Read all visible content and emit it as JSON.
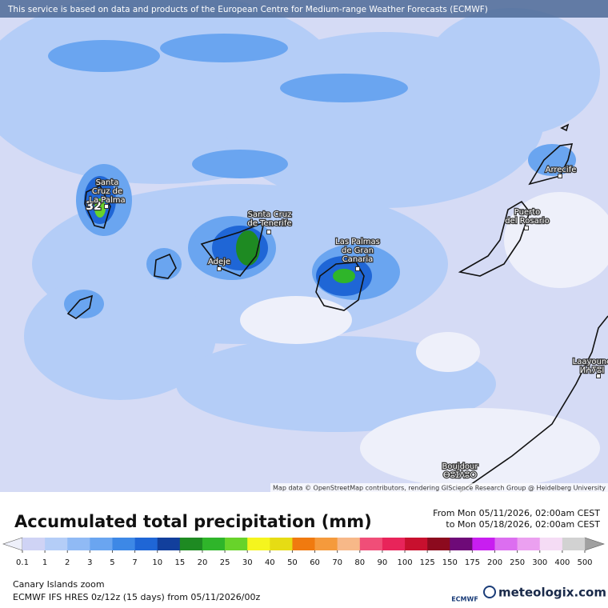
{
  "banner": "This service is based on data and products of the European Centre for Medium-range Weather Forecasts (ECMWF)",
  "map": {
    "max_value": 32,
    "attribution": "Map data © OpenStreetMap contributors, rendering GIScience Research Group @ Heidelberg University",
    "places": [
      {
        "lines": [
          "Santa",
          "Cruz de",
          "La Palma"
        ]
      },
      {
        "lines": [
          "Santa Cruz",
          "de Tenerife"
        ]
      },
      {
        "lines": [
          "Adeje"
        ]
      },
      {
        "lines": [
          "Las Palmas",
          "de Gran",
          "Canaria"
        ]
      },
      {
        "lines": [
          "Puerto",
          "del Rosario"
        ]
      },
      {
        "lines": [
          "Arrecife"
        ]
      },
      {
        "lines": [
          "Laayoune",
          "ⵍⵄⵢⵓⵏ"
        ]
      },
      {
        "lines": [
          "Boujdour",
          "ⴱⵓⵊⴷⵓⵔ"
        ]
      }
    ]
  },
  "legend": {
    "title": "Accumulated total precipitation (mm)",
    "period": [
      "From Mon 05/11/2026, 02:00am CEST",
      "to Mon 05/18/2026, 02:00am CEST"
    ],
    "levels": [
      0.1,
      1,
      2,
      3,
      5,
      7,
      10,
      15,
      20,
      25,
      30,
      40,
      50,
      60,
      70,
      80,
      90,
      100,
      125,
      150,
      175,
      200,
      250,
      300,
      400,
      500
    ],
    "colors": [
      "#cfd3f5",
      "#b4cdf7",
      "#90baf5",
      "#6aa5f0",
      "#3d88e6",
      "#1f66d6",
      "#123f9c",
      "#1e8a22",
      "#2fb52a",
      "#68d32a",
      "#f5f51e",
      "#e6dc14",
      "#f07a0f",
      "#f59a3c",
      "#f7b888",
      "#f04e78",
      "#e8245a",
      "#c8102e",
      "#8c0a1e",
      "#6e0a78",
      "#c81ef0",
      "#dc6ef0",
      "#eba0f0",
      "#f5dcf5",
      "#d2d2d2"
    ],
    "below_color": "#eef0fa",
    "above_color": "#a0a0a0"
  },
  "footer": {
    "region": "Canary Islands zoom",
    "model": "ECMWF IFS HRES 0z/12z (15 days) from 05/11/2026/00z",
    "ecmwf_logo": "ECMWF",
    "brand": "meteologix.com"
  }
}
